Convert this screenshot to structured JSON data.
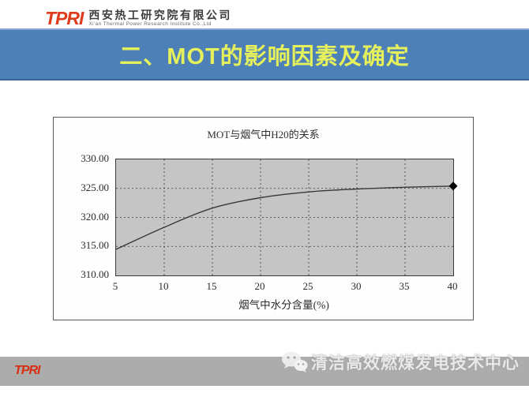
{
  "header": {
    "logo_text": "TPRI",
    "company_cn": "西安热工研究院有限公司",
    "company_en": "Xi'an Thermal Power Research Institute Co.,Ltd"
  },
  "banner": {
    "title": "二、MOT的影响因素及确定"
  },
  "chart_data": {
    "type": "line",
    "title": "MOT与烟气中H20的关系",
    "xlabel": "烟气中水分含量(%)",
    "ylabel": "",
    "x": [
      5,
      10,
      15,
      20,
      25,
      30,
      35,
      40
    ],
    "values": [
      314.5,
      318.3,
      321.6,
      323.4,
      324.4,
      324.9,
      325.2,
      325.4
    ],
    "xlim": [
      5,
      40
    ],
    "ylim": [
      310,
      330
    ],
    "x_ticks": [
      "5",
      "10",
      "15",
      "20",
      "25",
      "30",
      "35",
      "40"
    ],
    "y_ticks": [
      "330.00",
      "325.00",
      "320.00",
      "315.00",
      "310.00"
    ],
    "grid": "dashed",
    "legend": "none",
    "plot_bg": "#c5c5c5",
    "line_color": "#383838",
    "end_marker": "diamond",
    "end_marker_color": "#000000"
  },
  "footer": {
    "logo_text": "TPRI",
    "watermark_text": "清洁高效燃煤发电技术中心",
    "watermark_icon": "wechat-icon"
  },
  "colors": {
    "banner_bg": "#4e80b8",
    "banner_title": "#e5f05a",
    "logo_red": "#e03c1c",
    "footer_band": "#acacac"
  }
}
